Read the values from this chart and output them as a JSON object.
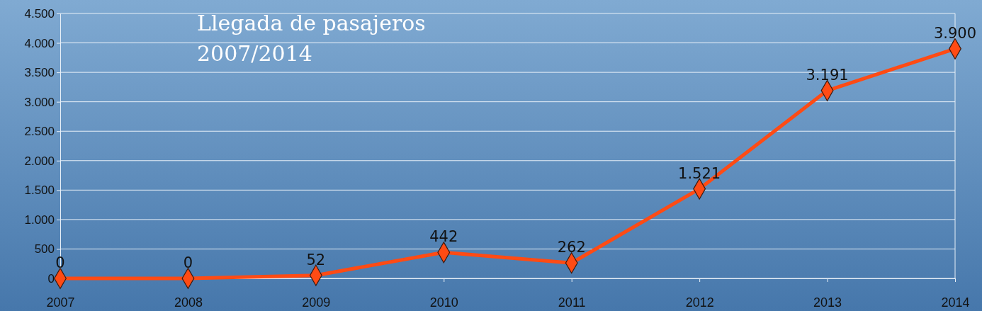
{
  "chart_data": {
    "type": "line",
    "title": "Llegada de pasajeros\n2007/2014",
    "categories": [
      "2007",
      "2008",
      "2009",
      "2010",
      "2011",
      "2012",
      "2013",
      "2014"
    ],
    "series": [
      {
        "color": "#ff4b14",
        "values": [
          0,
          0,
          52,
          442,
          262,
          1521,
          3191,
          3900
        ],
        "value_labels": [
          "0",
          "0",
          "52",
          "442",
          "262",
          "1.521",
          "3.191",
          "3.900"
        ]
      }
    ],
    "ylim": [
      0,
      4500
    ],
    "yticks": [
      0,
      500,
      {
        "value": 1000,
        "label": "1.000"
      },
      {
        "value": 1500,
        "label": "1.500"
      },
      {
        "value": 2000,
        "label": "2.000"
      },
      {
        "value": 2500,
        "label": "2.500"
      },
      {
        "value": 3000,
        "label": "3.000"
      },
      {
        "value": 3500,
        "label": "3.500"
      },
      {
        "value": 4000,
        "label": "4.000"
      },
      {
        "value": 4500,
        "label": "4.500"
      }
    ],
    "grid": "y",
    "marker": "diamond",
    "line_style": "solid"
  }
}
